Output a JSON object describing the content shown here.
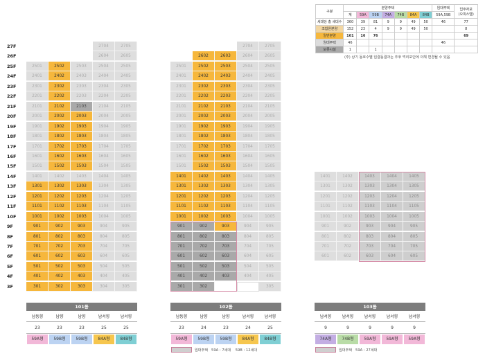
{
  "floors": [
    "27F",
    "26F",
    "25F",
    "24F",
    "23F",
    "22F",
    "21F",
    "20F",
    "19F",
    "18F",
    "17F",
    "16F",
    "15F",
    "14F",
    "13F",
    "12F",
    "11F",
    "10F",
    "9F",
    "8F",
    "7F",
    "6F",
    "5F",
    "4F",
    "3F"
  ],
  "buildings": [
    {
      "name": "101동",
      "direction_labels": [
        "남동향",
        "남향",
        "남향",
        "남서향",
        "남서향"
      ],
      "counts": [
        "23",
        "23",
        "23",
        "25",
        "25"
      ],
      "types": [
        "59A형",
        "59B형",
        "59B형",
        "84A형",
        "84B형"
      ],
      "type_colors": [
        "#f2b8d8",
        "#bcd3f2",
        "#bcd3f2",
        "#f6c64e",
        "#7fcfd4"
      ]
    },
    {
      "name": "102동",
      "direction_labels": [
        "남동향",
        "남향",
        "남향",
        "남서향",
        "남서향"
      ],
      "counts": [
        "23",
        "24",
        "23",
        "24",
        "25"
      ],
      "types": [
        "59A형",
        "59B형",
        "59B형",
        "84A형",
        "84B형"
      ],
      "type_colors": [
        "#f2b8d8",
        "#bcd3f2",
        "#bcd3f2",
        "#f6c64e",
        "#7fcfd4"
      ]
    },
    {
      "name": "103동",
      "direction_labels": [
        "남서향",
        "남서향",
        "남서향",
        "남서향",
        "남서향"
      ],
      "counts": [
        "9",
        "9",
        "9",
        "9",
        "9"
      ],
      "types": [
        "74A형",
        "74B형",
        "59A형",
        "59A형",
        "59A형"
      ],
      "type_colors": [
        "#c3aee3",
        "#b9dca7",
        "#f2b8d8",
        "#f2b8d8",
        "#f2b8d8"
      ]
    }
  ],
  "legends": [
    {
      "label": "임대주택",
      "text": "59A : 7세대",
      "text2": "59B : 12세대"
    },
    {
      "label": "임대주택",
      "text": "59A : 27세대"
    }
  ],
  "summary": {
    "header_gubun": "구분",
    "header_bunyang": "분양주택",
    "header_imdae": "임대주택",
    "header_ipju": "입주자보",
    "header_ipju2": "(오피스텔)",
    "cols": [
      "계",
      "59A",
      "59B",
      "74A",
      "74B",
      "84A",
      "84B"
    ],
    "col_colors": [
      "#ffffff",
      "#f2b8d8",
      "#bcd3f2",
      "#c3aee3",
      "#b9dca7",
      "#f6c64e",
      "#7fcfd4"
    ],
    "imdae_type": "59A,59B",
    "rows": [
      {
        "label": "세대당 총 세대수",
        "values": [
          "360",
          "39",
          "81",
          "9",
          "9",
          "49",
          "50"
        ],
        "imdae": "46",
        "ipju": "77"
      },
      {
        "label": "조합원분양",
        "values": [
          "152",
          "23",
          "4",
          "9",
          "9",
          "49",
          "50"
        ],
        "imdae": "",
        "ipju": "8"
      },
      {
        "label": "일반분양",
        "values": [
          "161",
          "16",
          "76",
          "",
          "",
          "",
          ""
        ],
        "imdae": "",
        "ipju": "69"
      },
      {
        "label": "임대주택",
        "values": [
          "46",
          "",
          "",
          "",
          "",
          "",
          ""
        ],
        "imdae": "46",
        "ipju": ""
      },
      {
        "label": "보류시설",
        "values": [
          "1",
          "",
          "1",
          "",
          "",
          "",
          ""
        ],
        "imdae": "",
        "ipju": ""
      }
    ],
    "note": "(주) 상기 동호수별 입결등결과는 추후 먹리포안에 의해 변경될 수 있음"
  }
}
